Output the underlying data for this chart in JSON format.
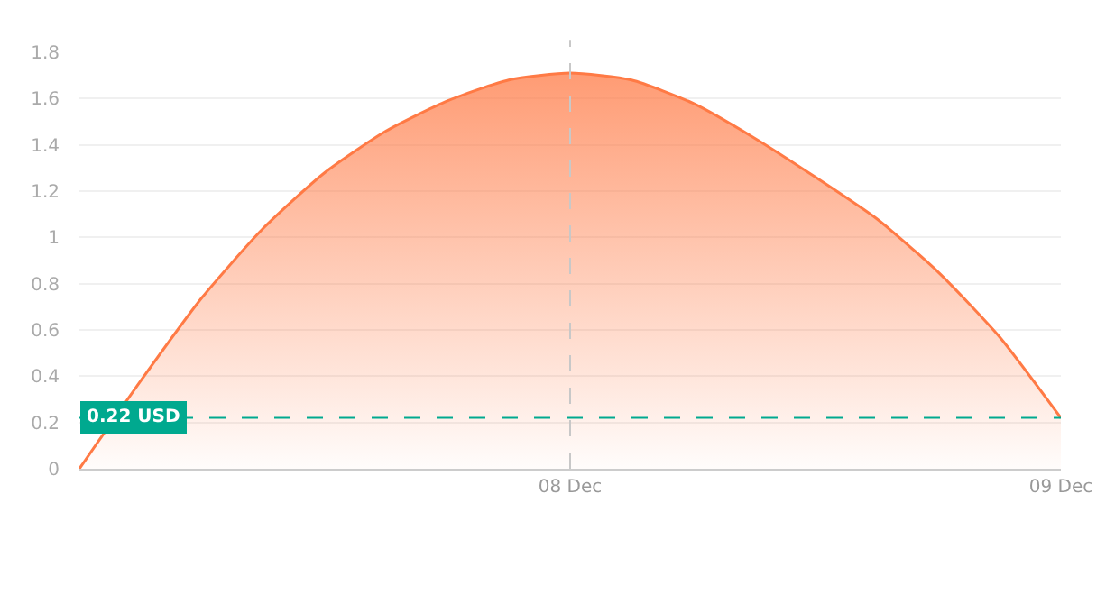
{
  "chart_data": {
    "type": "area",
    "categories": [
      null,
      null,
      null,
      null,
      null,
      null,
      null,
      null,
      "08 Dec",
      null,
      null,
      null,
      null,
      null,
      null,
      null,
      "09 Dec"
    ],
    "series": [
      {
        "color": "#ff7a45",
        "values": [
          0,
          0.38,
          0.74,
          1.04,
          1.28,
          1.46,
          1.59,
          1.68,
          1.71,
          1.68,
          1.58,
          1.43,
          1.26,
          1.08,
          0.85,
          0.57,
          0.22
        ]
      }
    ],
    "ylim": [
      0,
      1.8
    ],
    "yticks": [
      0,
      0.2,
      0.4,
      0.6,
      0.8,
      1,
      1.2,
      1.4,
      1.6,
      1.8
    ],
    "ref_lines": [
      {
        "axis": "y",
        "value": 0.22,
        "label": "0.22 USD",
        "color": "#00a98f",
        "line_style": "dashed"
      },
      {
        "axis": "x",
        "value": "08 Dec",
        "label": null,
        "color": "#c8c8c8",
        "line_style": "dashed"
      }
    ],
    "grid": "y",
    "marker": "none",
    "line_style": "solid"
  }
}
